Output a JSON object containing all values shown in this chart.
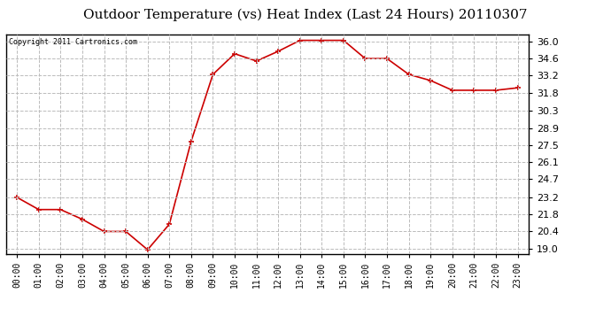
{
  "title": "Outdoor Temperature (vs) Heat Index (Last 24 Hours) 20110307",
  "copyright": "Copyright 2011 Cartronics.com",
  "x_labels": [
    "00:00",
    "01:00",
    "02:00",
    "03:00",
    "04:00",
    "05:00",
    "06:00",
    "07:00",
    "08:00",
    "09:00",
    "10:00",
    "11:00",
    "12:00",
    "13:00",
    "14:00",
    "15:00",
    "16:00",
    "17:00",
    "18:00",
    "19:00",
    "20:00",
    "21:00",
    "22:00",
    "23:00"
  ],
  "y_values": [
    23.2,
    22.2,
    22.2,
    21.4,
    20.4,
    20.4,
    18.9,
    21.0,
    27.8,
    33.3,
    35.0,
    34.4,
    35.2,
    36.1,
    36.1,
    36.1,
    34.6,
    34.6,
    33.3,
    32.8,
    32.0,
    32.0,
    32.0,
    32.2
  ],
  "line_color": "#cc0000",
  "marker": "+",
  "marker_size": 5,
  "marker_linewidth": 1.2,
  "line_width": 1.2,
  "background_color": "#ffffff",
  "plot_background": "#ffffff",
  "grid_color": "#bbbbbb",
  "grid_style": "--",
  "yticks": [
    19.0,
    20.4,
    21.8,
    23.2,
    24.7,
    26.1,
    27.5,
    28.9,
    30.3,
    31.8,
    33.2,
    34.6,
    36.0
  ],
  "ylim": [
    18.55,
    36.55
  ],
  "title_fontsize": 11,
  "copyright_fontsize": 6,
  "tick_fontsize": 7,
  "ytick_fontsize": 8
}
